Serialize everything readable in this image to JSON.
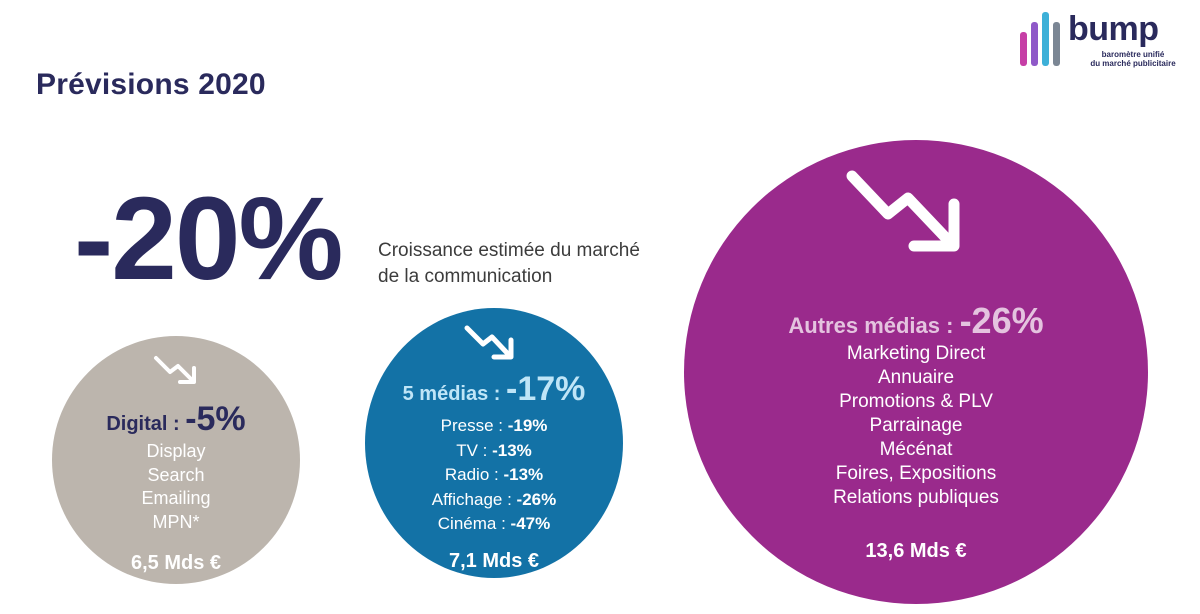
{
  "title": "Prévisions 2020",
  "logo": {
    "word": "bump",
    "subtitle_line1": "baromètre unifié",
    "subtitle_line2": "du marché publicitaire",
    "bar_colors": [
      "#c63fa6",
      "#8f59c8",
      "#3db0d8",
      "#7b8694"
    ]
  },
  "headline": {
    "value": "-20%",
    "caption_line1": "Croissance estimée du marché",
    "caption_line2": "de la communication"
  },
  "digital": {
    "label": "Digital : ",
    "value": "-5%",
    "items": [
      "Display",
      "Search",
      "Emailing",
      "MPN*"
    ],
    "total": "6,5 Mds €",
    "color": "#bcb5ad",
    "icon": "trend-down-icon"
  },
  "media": {
    "label": "5 médias : ",
    "value": "-17%",
    "items": [
      {
        "name": "Presse : ",
        "value": "-19%"
      },
      {
        "name": "TV : ",
        "value": "-13%"
      },
      {
        "name": "Radio : ",
        "value": "-13%"
      },
      {
        "name": "Affichage : ",
        "value": "-26%"
      },
      {
        "name": "Cinéma : ",
        "value": "-47%"
      }
    ],
    "total": "7,1 Mds €",
    "color": "#1372a6",
    "icon": "trend-down-icon"
  },
  "autres": {
    "label": "Autres médias : ",
    "value": "-26%",
    "items": [
      "Marketing Direct",
      "Annuaire",
      "Promotions & PLV",
      "Parrainage",
      "Mécénat",
      "Foires, Expositions",
      "Relations publiques"
    ],
    "total": "13,6 Mds €",
    "color": "#9a2a8c",
    "icon": "trend-down-icon"
  }
}
